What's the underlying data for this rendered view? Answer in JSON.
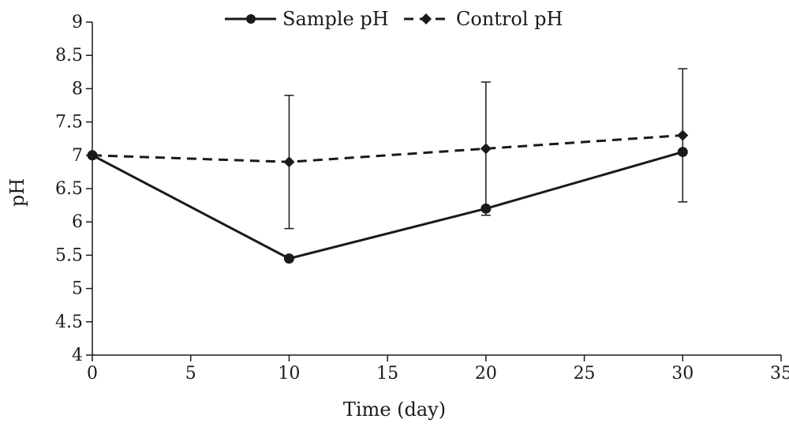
{
  "chart_data": {
    "type": "line",
    "title": "",
    "xlabel": "Time (day)",
    "ylabel": "pH",
    "xlim": [
      0,
      35
    ],
    "ylim": [
      4,
      9
    ],
    "x_ticks": [
      "0",
      "5",
      "10",
      "15",
      "20",
      "25",
      "30",
      "35"
    ],
    "y_ticks": [
      "4",
      "4.5",
      "5",
      "5.5",
      "6",
      "6.5",
      "7",
      "7.5",
      "8",
      "8.5",
      "9"
    ],
    "grid": false,
    "legend_position": "top",
    "series": [
      {
        "name": "Sample pH",
        "style": "solid",
        "marker": "circle",
        "color": "#1a1a1a",
        "x": [
          0,
          10,
          20,
          30
        ],
        "y": [
          7.0,
          5.45,
          6.2,
          7.05
        ],
        "error": [
          0,
          0,
          0,
          0
        ]
      },
      {
        "name": "Control pH",
        "style": "dashed",
        "marker": "diamond",
        "color": "#1a1a1a",
        "x": [
          0,
          10,
          20,
          30
        ],
        "y": [
          7.0,
          6.9,
          7.1,
          7.3
        ],
        "error": [
          0,
          1.0,
          1.0,
          1.0
        ]
      }
    ]
  }
}
